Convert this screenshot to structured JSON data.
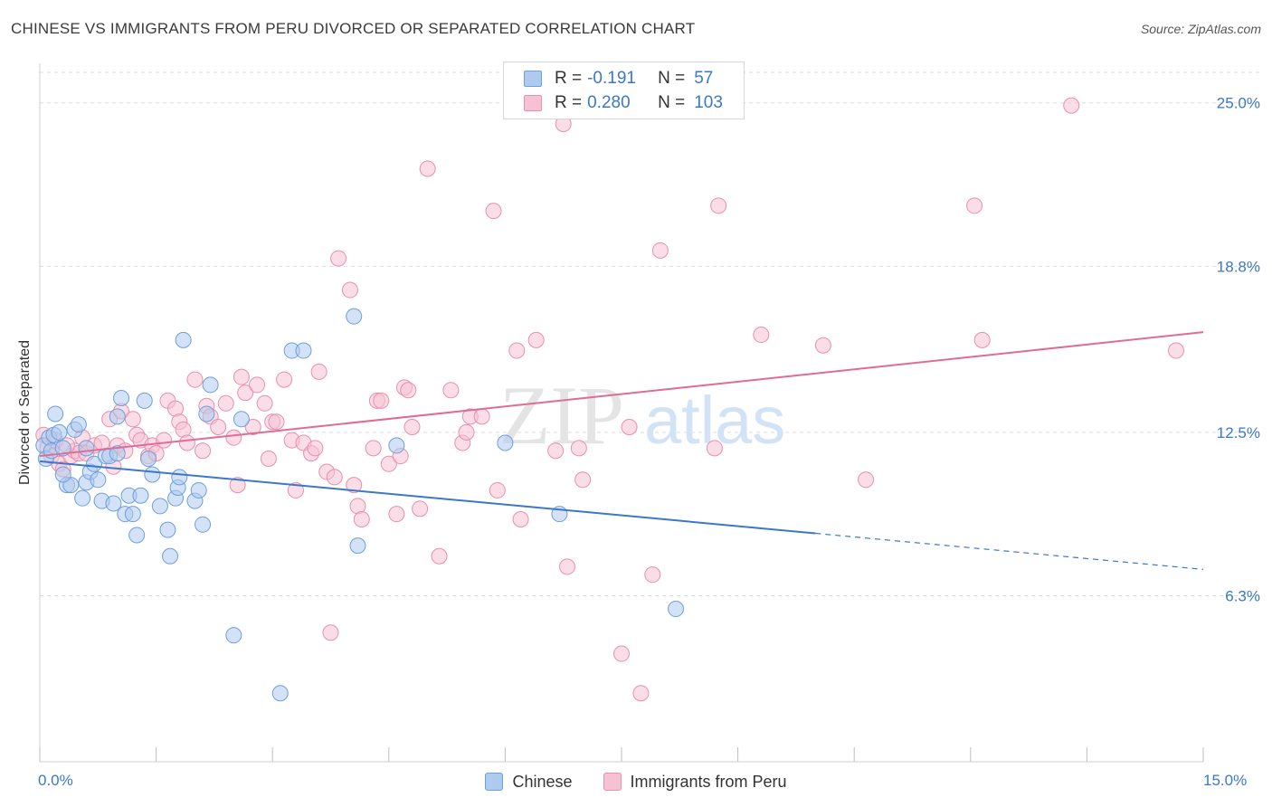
{
  "title": "CHINESE VS IMMIGRANTS FROM PERU DIVORCED OR SEPARATED CORRELATION CHART",
  "source": "Source: ZipAtlas.com",
  "watermark": {
    "zip": "ZIP",
    "atlas": "atlas"
  },
  "legend": {
    "rows": [
      {
        "r_label": "R =",
        "r_value": "-0.191",
        "n_label": "N =",
        "n_value": "57"
      },
      {
        "r_label": "R =",
        "r_value": "0.280",
        "n_label": "N =",
        "n_value": "103"
      }
    ]
  },
  "bottom_legend": {
    "chinese": "Chinese",
    "peru": "Immigrants from Peru"
  },
  "x_axis_labels": {
    "min": "0.0%",
    "max": "15.0%"
  },
  "colors": {
    "chinese_fill": "#aecbef",
    "chinese_stroke": "#6f9fdc",
    "chinese_line": "#3b78c9",
    "peru_fill": "#f6c1d2",
    "peru_stroke": "#e890ad",
    "peru_line": "#e06c95",
    "tick_label": "#3b78c9",
    "grid": "#dcdcdc"
  },
  "chart_data": {
    "type": "scatter",
    "title": "CHINESE VS IMMIGRANTS FROM PERU DIVORCED OR SEPARATED CORRELATION CHART",
    "xlabel": "",
    "ylabel": "Divorced or Separated",
    "xlim": [
      0,
      15
    ],
    "ylim": [
      0,
      26.5
    ],
    "y_ticks": [
      {
        "value": 6.3,
        "label": "6.3%"
      },
      {
        "value": 12.5,
        "label": "12.5%"
      },
      {
        "value": 18.8,
        "label": "18.8%"
      },
      {
        "value": 25.0,
        "label": "25.0%"
      }
    ],
    "x_ticks": [
      0,
      1.5,
      3,
      4.5,
      6,
      7.5,
      9,
      10.5,
      12,
      13.5,
      15
    ],
    "grid": true,
    "series": [
      {
        "name": "Chinese",
        "R": -0.191,
        "N": 57,
        "trend": {
          "x_start": 0,
          "y_start": 11.4,
          "x_solid_end": 10.0,
          "x_end": 15,
          "y_end": 7.3
        },
        "points": [
          [
            0.05,
            12.0
          ],
          [
            0.08,
            11.5
          ],
          [
            0.12,
            12.3
          ],
          [
            0.15,
            11.8
          ],
          [
            0.18,
            12.4
          ],
          [
            0.2,
            13.2
          ],
          [
            0.25,
            12.5
          ],
          [
            0.3,
            11.9
          ],
          [
            0.35,
            10.5
          ],
          [
            0.4,
            10.5
          ],
          [
            0.45,
            12.6
          ],
          [
            0.5,
            12.8
          ],
          [
            0.55,
            10.0
          ],
          [
            0.6,
            10.6
          ],
          [
            0.65,
            11.0
          ],
          [
            0.7,
            11.3
          ],
          [
            0.75,
            10.7
          ],
          [
            0.8,
            9.9
          ],
          [
            0.85,
            11.6
          ],
          [
            0.9,
            11.6
          ],
          [
            0.95,
            9.8
          ],
          [
            1.0,
            13.1
          ],
          [
            1.05,
            13.8
          ],
          [
            1.1,
            9.4
          ],
          [
            1.15,
            10.1
          ],
          [
            1.2,
            9.4
          ],
          [
            1.25,
            8.6
          ],
          [
            1.3,
            10.1
          ],
          [
            1.35,
            13.7
          ],
          [
            1.4,
            11.5
          ],
          [
            1.45,
            10.9
          ],
          [
            1.55,
            9.7
          ],
          [
            1.65,
            8.8
          ],
          [
            1.68,
            7.8
          ],
          [
            1.75,
            10.0
          ],
          [
            1.78,
            10.4
          ],
          [
            1.85,
            16.0
          ],
          [
            2.0,
            9.9
          ],
          [
            2.05,
            10.3
          ],
          [
            2.1,
            9.0
          ],
          [
            2.15,
            13.2
          ],
          [
            2.2,
            14.3
          ],
          [
            2.5,
            4.8
          ],
          [
            2.6,
            13.0
          ],
          [
            3.1,
            2.6
          ],
          [
            3.25,
            15.6
          ],
          [
            3.4,
            15.6
          ],
          [
            4.05,
            16.9
          ],
          [
            4.1,
            8.2
          ],
          [
            4.6,
            12.0
          ],
          [
            6.0,
            12.1
          ],
          [
            6.7,
            9.4
          ],
          [
            8.2,
            5.8
          ],
          [
            0.3,
            10.9
          ],
          [
            1.8,
            10.8
          ],
          [
            0.6,
            11.9
          ],
          [
            1.0,
            11.7
          ]
        ]
      },
      {
        "name": "Immigrants from Peru",
        "R": 0.28,
        "N": 103,
        "trend": {
          "x_start": 0,
          "y_start": 11.6,
          "x_end": 15,
          "y_end": 16.3
        },
        "points": [
          [
            0.05,
            12.4
          ],
          [
            0.1,
            11.9
          ],
          [
            0.15,
            11.6
          ],
          [
            0.2,
            12.2
          ],
          [
            0.25,
            11.3
          ],
          [
            0.3,
            11.1
          ],
          [
            0.4,
            11.6
          ],
          [
            0.45,
            11.8
          ],
          [
            0.5,
            11.7
          ],
          [
            0.55,
            12.3
          ],
          [
            0.6,
            11.7
          ],
          [
            0.7,
            12.0
          ],
          [
            0.8,
            12.1
          ],
          [
            0.9,
            13.0
          ],
          [
            0.95,
            11.2
          ],
          [
            1.0,
            12.0
          ],
          [
            1.05,
            13.3
          ],
          [
            1.1,
            11.8
          ],
          [
            1.2,
            13.0
          ],
          [
            1.25,
            12.4
          ],
          [
            1.3,
            12.2
          ],
          [
            1.4,
            11.6
          ],
          [
            1.45,
            12.0
          ],
          [
            1.5,
            11.7
          ],
          [
            1.6,
            12.2
          ],
          [
            1.65,
            13.7
          ],
          [
            1.75,
            13.4
          ],
          [
            1.8,
            12.9
          ],
          [
            1.85,
            12.6
          ],
          [
            1.9,
            12.1
          ],
          [
            2.0,
            14.5
          ],
          [
            2.1,
            11.8
          ],
          [
            2.15,
            13.5
          ],
          [
            2.2,
            13.1
          ],
          [
            2.3,
            12.7
          ],
          [
            2.4,
            13.6
          ],
          [
            2.5,
            12.3
          ],
          [
            2.55,
            10.5
          ],
          [
            2.6,
            14.6
          ],
          [
            2.65,
            14.0
          ],
          [
            2.75,
            12.7
          ],
          [
            2.8,
            14.3
          ],
          [
            2.9,
            13.6
          ],
          [
            2.95,
            11.5
          ],
          [
            3.0,
            12.9
          ],
          [
            3.05,
            12.9
          ],
          [
            3.15,
            14.5
          ],
          [
            3.25,
            12.2
          ],
          [
            3.3,
            10.3
          ],
          [
            3.4,
            12.1
          ],
          [
            3.5,
            11.7
          ],
          [
            3.55,
            11.9
          ],
          [
            3.6,
            14.8
          ],
          [
            3.7,
            11.0
          ],
          [
            3.75,
            4.9
          ],
          [
            3.8,
            10.8
          ],
          [
            3.85,
            19.1
          ],
          [
            4.0,
            17.9
          ],
          [
            4.05,
            10.5
          ],
          [
            4.1,
            9.7
          ],
          [
            4.15,
            9.2
          ],
          [
            4.3,
            11.9
          ],
          [
            4.35,
            13.7
          ],
          [
            4.4,
            13.7
          ],
          [
            4.5,
            11.3
          ],
          [
            4.6,
            9.4
          ],
          [
            4.65,
            11.6
          ],
          [
            4.7,
            14.2
          ],
          [
            4.75,
            14.1
          ],
          [
            4.8,
            12.7
          ],
          [
            4.9,
            9.6
          ],
          [
            5.0,
            22.5
          ],
          [
            5.15,
            7.8
          ],
          [
            5.3,
            14.1
          ],
          [
            5.45,
            12.1
          ],
          [
            5.5,
            12.5
          ],
          [
            5.55,
            13.1
          ],
          [
            5.7,
            13.1
          ],
          [
            5.85,
            20.9
          ],
          [
            5.9,
            10.3
          ],
          [
            6.15,
            15.6
          ],
          [
            6.2,
            9.2
          ],
          [
            6.4,
            16.0
          ],
          [
            6.65,
            11.8
          ],
          [
            6.75,
            24.2
          ],
          [
            6.8,
            7.4
          ],
          [
            6.95,
            11.9
          ],
          [
            7.0,
            10.7
          ],
          [
            7.5,
            4.1
          ],
          [
            7.6,
            12.7
          ],
          [
            7.75,
            2.6
          ],
          [
            7.9,
            7.1
          ],
          [
            8.0,
            19.4
          ],
          [
            8.7,
            11.9
          ],
          [
            8.75,
            21.1
          ],
          [
            9.3,
            16.2
          ],
          [
            10.1,
            15.8
          ],
          [
            10.65,
            10.7
          ],
          [
            12.05,
            21.1
          ],
          [
            12.15,
            16.0
          ],
          [
            13.3,
            24.9
          ],
          [
            14.65,
            15.6
          ],
          [
            0.35,
            12.0
          ]
        ]
      }
    ]
  }
}
